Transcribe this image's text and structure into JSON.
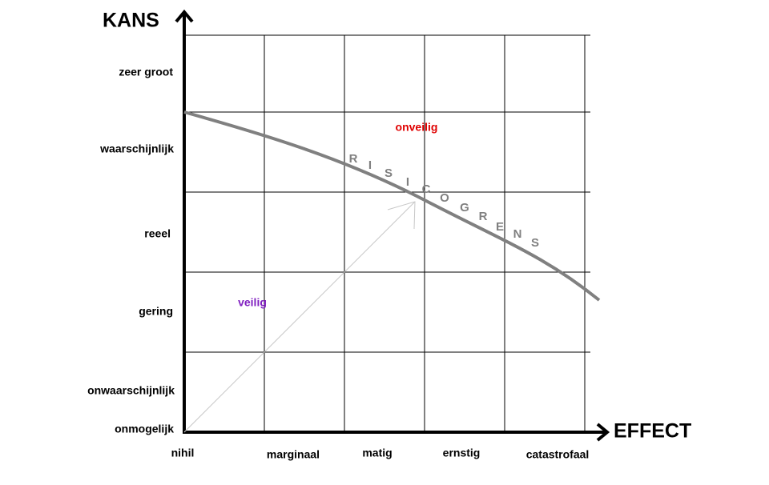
{
  "axes": {
    "y_title": "KANS",
    "x_title": "EFFECT"
  },
  "y_levels": [
    "zeer groot",
    "waarschijnlijk",
    "reeel",
    "gering",
    "onwaarschijnlijk",
    "onmogelijk"
  ],
  "x_levels": [
    "nihil",
    "marginaal",
    "matig",
    "ernstig",
    "catastrofaal"
  ],
  "regions": {
    "unsafe": "onveilig",
    "safe": "veilig"
  },
  "curve_letters": [
    "R",
    "I",
    "S",
    "I",
    "C",
    "O",
    "G",
    "R",
    "E",
    "N",
    "S"
  ]
}
